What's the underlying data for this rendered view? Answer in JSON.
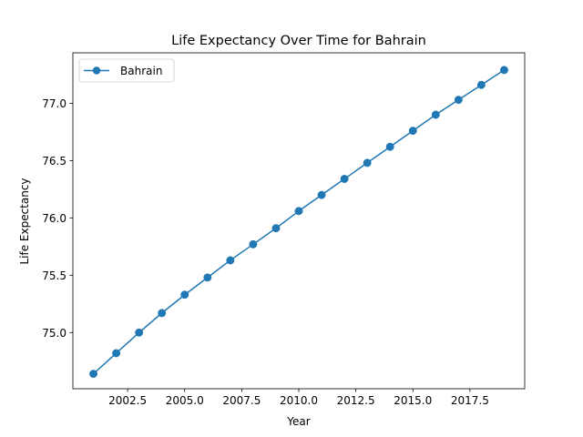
{
  "chart_data": {
    "type": "line",
    "title": "Life Expectancy Over Time for Bahrain",
    "xlabel": "Year",
    "ylabel": "Life Expectancy",
    "xlim": [
      2000.1,
      2019.9
    ],
    "ylim": [
      74.51,
      77.44
    ],
    "xticks": [
      2002.5,
      2005.0,
      2007.5,
      2010.0,
      2012.5,
      2015.0,
      2017.5
    ],
    "yticks": [
      75.0,
      75.5,
      76.0,
      76.5,
      77.0
    ],
    "grid": false,
    "legend_position": "top-left",
    "series": [
      {
        "name": "Bahrain",
        "color": "#1f77b4",
        "marker": "circle",
        "x": [
          2001,
          2002,
          2003,
          2004,
          2005,
          2006,
          2007,
          2008,
          2009,
          2010,
          2011,
          2012,
          2013,
          2014,
          2015,
          2016,
          2017,
          2018,
          2019
        ],
        "y": [
          74.64,
          74.82,
          75.0,
          75.17,
          75.33,
          75.48,
          75.63,
          75.77,
          75.91,
          76.06,
          76.2,
          76.34,
          76.48,
          76.62,
          76.76,
          76.9,
          77.03,
          77.16,
          77.29
        ]
      }
    ]
  }
}
